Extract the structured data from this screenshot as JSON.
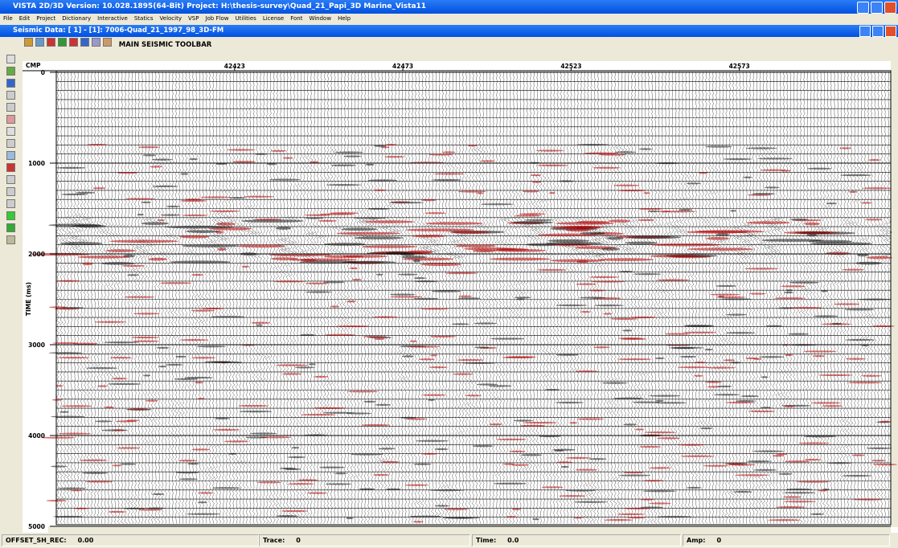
{
  "app_title": "VISTA 2D/3D Version: 10.028.1895(64-Bit) Project: H:\\thesis-survey\\Quad_21_Papi_3D Marine_Vista11",
  "menu": [
    "File",
    "Edit",
    "Project",
    "Dictionary",
    "Interactive",
    "Statics",
    "Velocity",
    "VSP",
    "Job Flow",
    "Utilities",
    "License",
    "Font",
    "Window",
    "Help"
  ],
  "window_title": "Seismic Data: [ 1] - [1]: 7006-Quad_21_1997_98_3D-FM",
  "toolbar_label": "MAIN SEISMIC TOOLBAR",
  "plot": {
    "x_label": "CMP",
    "xticks": [
      42423,
      42473,
      42523,
      42573
    ],
    "xlim": [
      42370,
      42618
    ],
    "y_label": "TIME (ms)",
    "yticks": [
      0,
      1000,
      2000,
      3000,
      4000,
      5000
    ],
    "ylim": [
      0,
      5000
    ]
  },
  "status": [
    {
      "label": "OFFSET_SH_REC:",
      "value": "0.00"
    },
    {
      "label": "Trace:",
      "value": "0"
    },
    {
      "label": "Time:",
      "value": "0.0"
    },
    {
      "label": "Amp:",
      "value": "0"
    }
  ]
}
